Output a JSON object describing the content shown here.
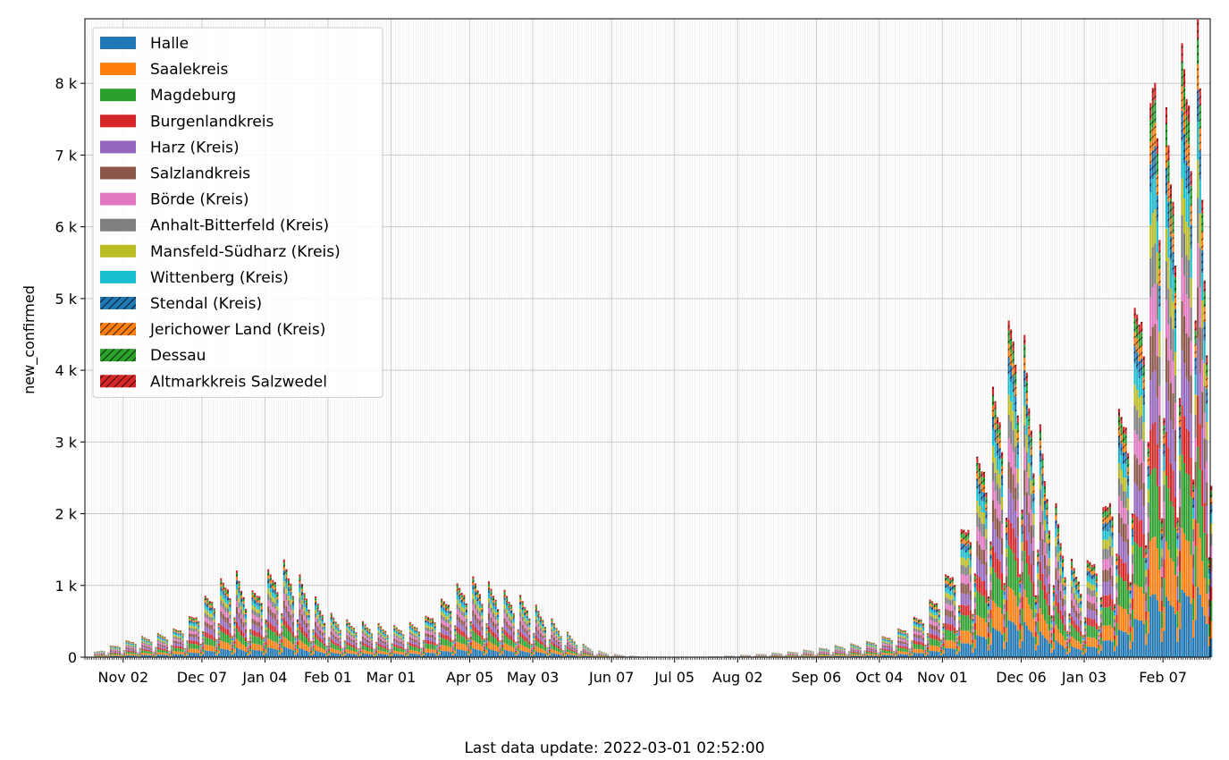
{
  "chart_data": {
    "type": "bar",
    "stacked": true,
    "ylabel": "new_confirmed",
    "ylim": [
      0,
      8900
    ],
    "yticks": [
      {
        "value": 0,
        "label": "0"
      },
      {
        "value": 1000,
        "label": "1 k"
      },
      {
        "value": 2000,
        "label": "2 k"
      },
      {
        "value": 3000,
        "label": "3 k"
      },
      {
        "value": 4000,
        "label": "4 k"
      },
      {
        "value": 5000,
        "label": "5 k"
      },
      {
        "value": 6000,
        "label": "6 k"
      },
      {
        "value": 7000,
        "label": "7 k"
      },
      {
        "value": 8000,
        "label": "8 k"
      }
    ],
    "xlim": [
      "2020-10-16",
      "2022-02-28"
    ],
    "xticks": [
      {
        "date": "2020-11-02",
        "label": "Nov 02"
      },
      {
        "date": "2020-12-07",
        "label": "Dec 07"
      },
      {
        "date": "2021-01-04",
        "label": "Jan 04"
      },
      {
        "date": "2021-02-01",
        "label": "Feb 01"
      },
      {
        "date": "2021-03-01",
        "label": "Mar 01"
      },
      {
        "date": "2021-04-05",
        "label": "Apr 05"
      },
      {
        "date": "2021-05-03",
        "label": "May 03"
      },
      {
        "date": "2021-06-07",
        "label": "Jun 07"
      },
      {
        "date": "2021-07-05",
        "label": "Jul 05"
      },
      {
        "date": "2021-08-02",
        "label": "Aug 02"
      },
      {
        "date": "2021-09-06",
        "label": "Sep 06"
      },
      {
        "date": "2021-10-04",
        "label": "Oct 04"
      },
      {
        "date": "2021-11-01",
        "label": "Nov 01"
      },
      {
        "date": "2021-12-06",
        "label": "Dec 06"
      },
      {
        "date": "2022-01-03",
        "label": "Jan 03"
      },
      {
        "date": "2022-02-07",
        "label": "Feb 07"
      }
    ],
    "grid": true,
    "legend_position": "top-left",
    "series": [
      {
        "name": "Halle",
        "color": "#1f77b4",
        "hatch": false,
        "share": 0.11
      },
      {
        "name": "Saalekreis",
        "color": "#ff7f0e",
        "hatch": false,
        "share": 0.1
      },
      {
        "name": "Magdeburg",
        "color": "#2ca02c",
        "hatch": false,
        "share": 0.12
      },
      {
        "name": "Burgenlandkreis",
        "color": "#d62728",
        "hatch": false,
        "share": 0.08
      },
      {
        "name": "Harz (Kreis)",
        "color": "#9467bd",
        "hatch": false,
        "share": 0.09
      },
      {
        "name": "Salzlandkreis",
        "color": "#8c564b",
        "hatch": false,
        "share": 0.08
      },
      {
        "name": "Börde (Kreis)",
        "color": "#e377c2",
        "hatch": false,
        "share": 0.07
      },
      {
        "name": "Anhalt-Bitterfeld (Kreis)",
        "color": "#7f7f7f",
        "hatch": false,
        "share": 0.07
      },
      {
        "name": "Mansfeld-Südharz (Kreis)",
        "color": "#bcbd22",
        "hatch": false,
        "share": 0.06
      },
      {
        "name": "Wittenberg (Kreis)",
        "color": "#17becf",
        "hatch": false,
        "share": 0.06
      },
      {
        "name": "Stendal (Kreis)",
        "color": "#1f77b4",
        "hatch": true,
        "share": 0.05
      },
      {
        "name": "Jerichower Land (Kreis)",
        "color": "#ff7f0e",
        "hatch": true,
        "share": 0.04
      },
      {
        "name": "Dessau",
        "color": "#2ca02c",
        "hatch": true,
        "share": 0.04
      },
      {
        "name": "Altmarkkreis Salzwedel",
        "color": "#d62728",
        "hatch": true,
        "share": 0.03
      }
    ],
    "daily_totals": [
      {
        "date": "2020-10-20",
        "value": 60
      },
      {
        "date": "2020-10-26",
        "value": 120
      },
      {
        "date": "2020-11-02",
        "value": 180
      },
      {
        "date": "2020-11-09",
        "value": 230
      },
      {
        "date": "2020-11-16",
        "value": 260
      },
      {
        "date": "2020-11-23",
        "value": 300
      },
      {
        "date": "2020-11-30",
        "value": 420
      },
      {
        "date": "2020-12-07",
        "value": 650
      },
      {
        "date": "2020-12-14",
        "value": 850
      },
      {
        "date": "2020-12-21",
        "value": 1000
      },
      {
        "date": "2020-12-28",
        "value": 700
      },
      {
        "date": "2021-01-04",
        "value": 950
      },
      {
        "date": "2021-01-11",
        "value": 1100
      },
      {
        "date": "2021-01-18",
        "value": 950
      },
      {
        "date": "2021-01-25",
        "value": 700
      },
      {
        "date": "2021-02-01",
        "value": 500
      },
      {
        "date": "2021-02-08",
        "value": 420
      },
      {
        "date": "2021-02-15",
        "value": 400
      },
      {
        "date": "2021-02-22",
        "value": 380
      },
      {
        "date": "2021-03-01",
        "value": 350
      },
      {
        "date": "2021-03-08",
        "value": 380
      },
      {
        "date": "2021-03-15",
        "value": 430
      },
      {
        "date": "2021-03-22",
        "value": 620
      },
      {
        "date": "2021-03-29",
        "value": 800
      },
      {
        "date": "2021-04-05",
        "value": 900
      },
      {
        "date": "2021-04-12",
        "value": 850
      },
      {
        "date": "2021-04-19",
        "value": 750
      },
      {
        "date": "2021-04-26",
        "value": 700
      },
      {
        "date": "2021-05-03",
        "value": 600
      },
      {
        "date": "2021-05-10",
        "value": 450
      },
      {
        "date": "2021-05-17",
        "value": 300
      },
      {
        "date": "2021-05-24",
        "value": 160
      },
      {
        "date": "2021-05-31",
        "value": 80
      },
      {
        "date": "2021-06-07",
        "value": 40
      },
      {
        "date": "2021-06-14",
        "value": 20
      },
      {
        "date": "2021-06-21",
        "value": 10
      },
      {
        "date": "2021-06-28",
        "value": 6
      },
      {
        "date": "2021-07-05",
        "value": 5
      },
      {
        "date": "2021-07-12",
        "value": 5
      },
      {
        "date": "2021-07-19",
        "value": 8
      },
      {
        "date": "2021-07-26",
        "value": 15
      },
      {
        "date": "2021-08-02",
        "value": 25
      },
      {
        "date": "2021-08-09",
        "value": 35
      },
      {
        "date": "2021-08-16",
        "value": 50
      },
      {
        "date": "2021-08-23",
        "value": 60
      },
      {
        "date": "2021-08-30",
        "value": 80
      },
      {
        "date": "2021-09-06",
        "value": 100
      },
      {
        "date": "2021-09-13",
        "value": 130
      },
      {
        "date": "2021-09-20",
        "value": 150
      },
      {
        "date": "2021-09-27",
        "value": 170
      },
      {
        "date": "2021-10-04",
        "value": 220
      },
      {
        "date": "2021-10-11",
        "value": 300
      },
      {
        "date": "2021-10-18",
        "value": 420
      },
      {
        "date": "2021-10-25",
        "value": 600
      },
      {
        "date": "2021-11-01",
        "value": 850
      },
      {
        "date": "2021-11-08",
        "value": 1300
      },
      {
        "date": "2021-11-15",
        "value": 2100
      },
      {
        "date": "2021-11-22",
        "value": 2900
      },
      {
        "date": "2021-11-29",
        "value": 3500
      },
      {
        "date": "2021-12-02",
        "value": 4150
      },
      {
        "date": "2021-12-06",
        "value": 3700
      },
      {
        "date": "2021-12-13",
        "value": 2700
      },
      {
        "date": "2021-12-20",
        "value": 1800
      },
      {
        "date": "2021-12-27",
        "value": 1100
      },
      {
        "date": "2022-01-03",
        "value": 1000
      },
      {
        "date": "2022-01-10",
        "value": 1500
      },
      {
        "date": "2022-01-17",
        "value": 2600
      },
      {
        "date": "2022-01-24",
        "value": 3600
      },
      {
        "date": "2022-01-31",
        "value": 5400
      },
      {
        "date": "2022-02-03",
        "value": 7550
      },
      {
        "date": "2022-02-07",
        "value": 6000
      },
      {
        "date": "2022-02-14",
        "value": 6500
      },
      {
        "date": "2022-02-21",
        "value": 8450
      },
      {
        "date": "2022-02-25",
        "value": 5200
      },
      {
        "date": "2022-02-28",
        "value": 4300
      }
    ],
    "weekday_factors": [
      0.55,
      1.25,
      1.15,
      1.05,
      1.0,
      0.85,
      0.3
    ]
  },
  "footer": {
    "text": "Last data update: 2022-03-01 02:52:00"
  }
}
